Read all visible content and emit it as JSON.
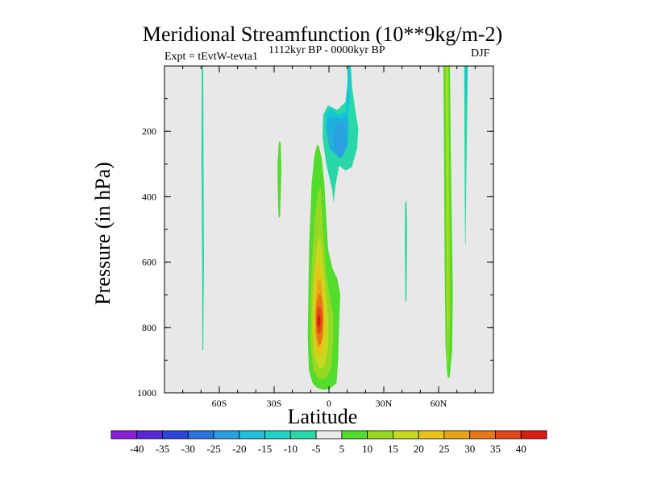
{
  "chart_data": {
    "type": "contour",
    "title": "Meridional Streamfunction (10**9kg/m-2)",
    "subtitle_left": "Expt = tEvtW-tevta1",
    "subtitle_center": "1112kyr BP - 0000kyr BP",
    "subtitle_right": "DJF",
    "xlabel": "Latitude",
    "ylabel": "Pressure (in hPa)",
    "xlim": [
      -90,
      90
    ],
    "ylim": [
      1000,
      0
    ],
    "xticks": [
      {
        "value": -60,
        "label": "60S"
      },
      {
        "value": -30,
        "label": "30S"
      },
      {
        "value": 0,
        "label": "0"
      },
      {
        "value": 30,
        "label": "30N"
      },
      {
        "value": 60,
        "label": "60N"
      }
    ],
    "yticks": [
      {
        "value": 200,
        "label": "200"
      },
      {
        "value": 400,
        "label": "400"
      },
      {
        "value": 600,
        "label": "600"
      },
      {
        "value": 800,
        "label": "800"
      },
      {
        "value": 1000,
        "label": "1000"
      }
    ],
    "background_color": "#e8e8e8",
    "colorbar": {
      "labels": [
        "-40",
        "-35",
        "-30",
        "-25",
        "-20",
        "-15",
        "-10",
        "-5",
        "5",
        "10",
        "15",
        "20",
        "25",
        "30",
        "35",
        "40"
      ],
      "colors": [
        "#8a1fd6",
        "#5a28d2",
        "#2b46d8",
        "#2a73dd",
        "#2a9fe0",
        "#20c0dc",
        "#20d2c8",
        "#28d8a8",
        "#e8e8e8",
        "#52dc2c",
        "#96d824",
        "#c8d81e",
        "#e8c418",
        "#e8a414",
        "#e47818",
        "#e04818",
        "#d81e12"
      ]
    },
    "features": [
      {
        "name": "Tropical positive cell (max ~40 near 3S, 780 hPa)",
        "sign": "positive",
        "levels": [
          5,
          10,
          15,
          20,
          25,
          30,
          35,
          40
        ],
        "center_lat": -3,
        "center_p": 780,
        "extent_lat": [
          -11,
          6
        ],
        "extent_p": [
          235,
          990
        ]
      },
      {
        "name": "Upper tropical negative cell (min ~-20 near 5N, 230 hPa)",
        "sign": "negative",
        "levels": [
          -5,
          -10,
          -15,
          -20
        ],
        "center_lat": 6,
        "center_p": 230,
        "extent_lat": [
          -3,
          12
        ],
        "extent_p": [
          0,
          420
        ]
      },
      {
        "name": "Northern mid-latitude positive band",
        "sign": "positive",
        "levels": [
          5,
          10,
          15
        ],
        "center_lat": 66,
        "extent_p": [
          0,
          955
        ]
      },
      {
        "name": "High-latitude northern negative strip",
        "sign": "negative",
        "levels": [
          -5
        ],
        "center_lat": 75,
        "extent_p": [
          0,
          545
        ]
      },
      {
        "name": "Southern high-latitude negative strip",
        "sign": "negative",
        "levels": [
          -5
        ],
        "center_lat": -69,
        "extent_p": [
          0,
          870
        ]
      },
      {
        "name": "Southern subtropical positive patch",
        "sign": "positive",
        "levels": [
          5
        ],
        "center_lat": -27,
        "extent_p": [
          230,
          465
        ]
      },
      {
        "name": "Northern mid-latitude negative patch",
        "sign": "negative",
        "levels": [
          -5
        ],
        "center_lat": 42,
        "extent_p": [
          415,
          720
        ]
      }
    ]
  }
}
